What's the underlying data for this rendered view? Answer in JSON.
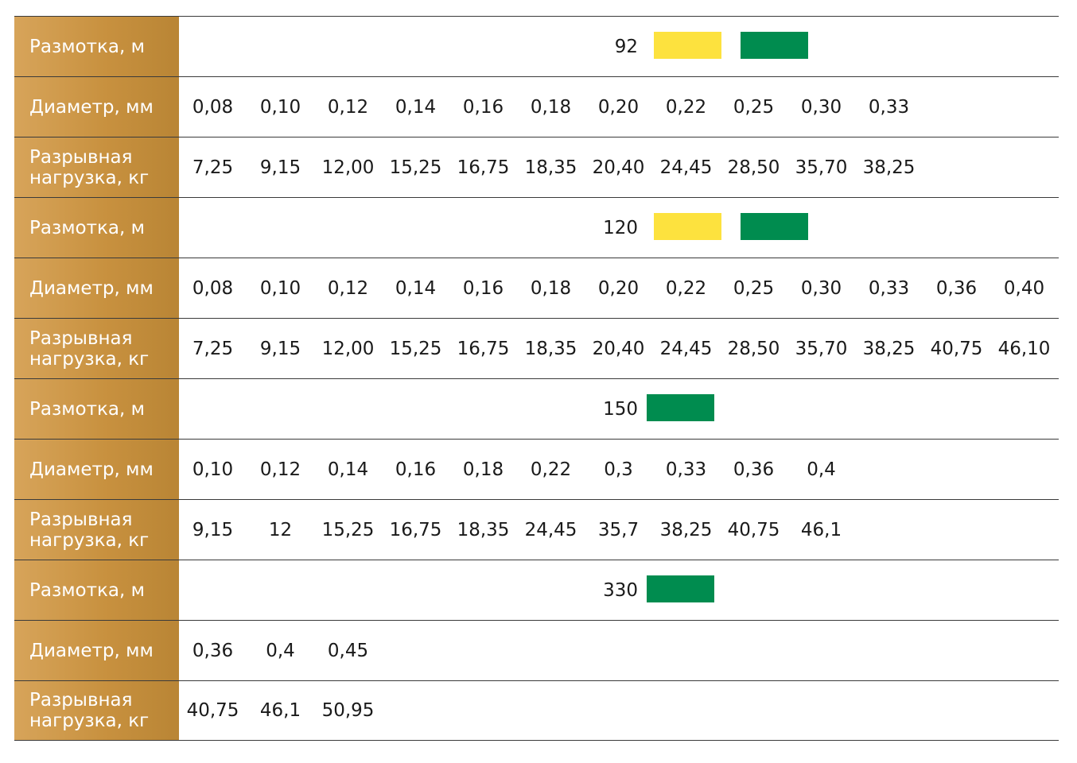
{
  "labels": {
    "length": "Размотка, м",
    "diameter": "Диаметр, мм",
    "load_line1": "Разрывная",
    "load_line2": "нагрузка, кг"
  },
  "colors": {
    "yellow": "#fde23e",
    "green": "#008c4f",
    "gold": "#c8913f"
  },
  "blocks": [
    {
      "length": "92",
      "swatches": [
        "yellow",
        "green"
      ],
      "diameters": [
        "0,08",
        "0,10",
        "0,12",
        "0,14",
        "0,16",
        "0,18",
        "0,20",
        "0,22",
        "0,25",
        "0,30",
        "0,33"
      ],
      "loads": [
        "7,25",
        "9,15",
        "12,00",
        "15,25",
        "16,75",
        "18,35",
        "20,40",
        "24,45",
        "28,50",
        "35,70",
        "38,25"
      ]
    },
    {
      "length": "120",
      "swatches": [
        "yellow",
        "green"
      ],
      "diameters": [
        "0,08",
        "0,10",
        "0,12",
        "0,14",
        "0,16",
        "0,18",
        "0,20",
        "0,22",
        "0,25",
        "0,30",
        "0,33",
        "0,36",
        "0,40"
      ],
      "loads": [
        "7,25",
        "9,15",
        "12,00",
        "15,25",
        "16,75",
        "18,35",
        "20,40",
        "24,45",
        "28,50",
        "35,70",
        "38,25",
        "40,75",
        "46,10"
      ]
    },
    {
      "length": "150",
      "swatches": [
        "green"
      ],
      "diameters": [
        "0,10",
        "0,12",
        "0,14",
        "0,16",
        "0,18",
        "0,22",
        "0,3",
        "0,33",
        "0,36",
        "0,4"
      ],
      "loads": [
        "9,15",
        "12",
        "15,25",
        "16,75",
        "18,35",
        "24,45",
        "35,7",
        "38,25",
        "40,75",
        "46,1"
      ]
    },
    {
      "length": "330",
      "swatches": [
        "green"
      ],
      "diameters": [
        "0,36",
        "0,4",
        "0,45"
      ],
      "loads": [
        "40,75",
        "46,1",
        "50,95"
      ]
    }
  ]
}
